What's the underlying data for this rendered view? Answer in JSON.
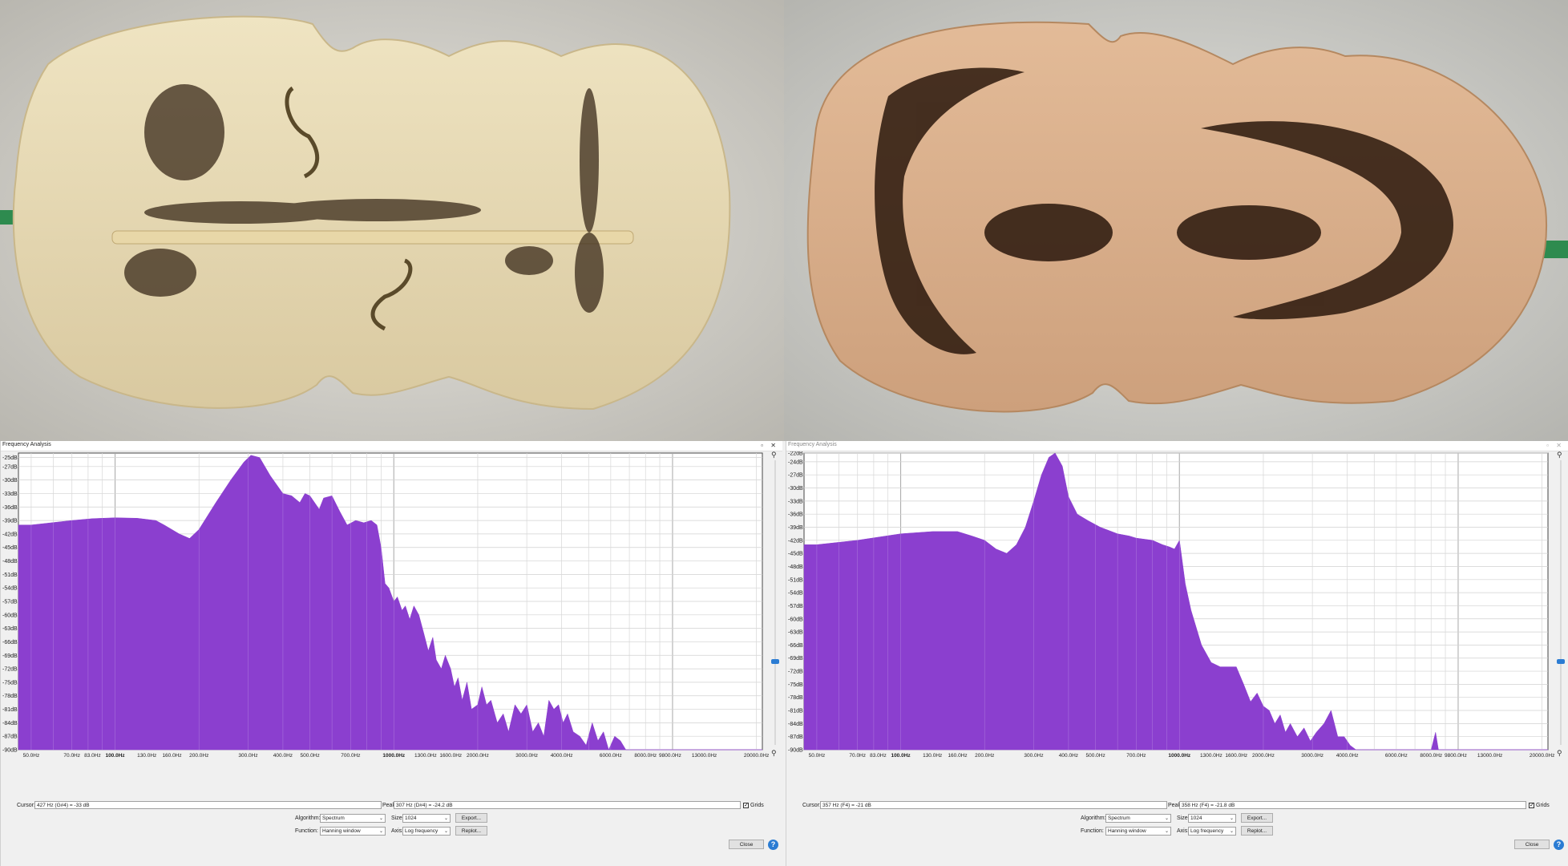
{
  "windows": [
    {
      "title": "Frequency Analysis",
      "active": true,
      "y_ticks": [
        "-25dB",
        "-27dB",
        "-30dB",
        "-33dB",
        "-36dB",
        "-39dB",
        "-42dB",
        "-45dB",
        "-48dB",
        "-51dB",
        "-54dB",
        "-57dB",
        "-60dB",
        "-63dB",
        "-66dB",
        "-69dB",
        "-72dB",
        "-75dB",
        "-78dB",
        "-81dB",
        "-84dB",
        "-87dB",
        "-90dB"
      ],
      "x_ticks": [
        "50.0Hz",
        "70.0Hz",
        "83.0Hz",
        "100.0Hz",
        "130.0Hz",
        "160.0Hz",
        "200.0Hz",
        "300.0Hz",
        "400.0Hz",
        "500.0Hz",
        "700.0Hz",
        "1000.0Hz",
        "1300.0Hz",
        "1600.0Hz",
        "2000.0Hz",
        "3000.0Hz",
        "4000.0Hz",
        "6000.0Hz",
        "8000.0Hz",
        "9800.0Hz",
        "13000.0Hz",
        "20000.0Hz"
      ],
      "cursor_label": "Cursor:",
      "cursor_value": "427 Hz (G#4) = -33 dB",
      "peak_label": "Peak:",
      "peak_value": "307 Hz (D#4) = -24.2 dB",
      "grids_label": "Grids",
      "algorithm_label": "Algorithm:",
      "algorithm_value": "Spectrum",
      "size_label": "Size:",
      "size_value": "1024",
      "function_label": "Function:",
      "function_value": "Hanning window",
      "axis_label": "Axis:",
      "axis_value": "Log frequency",
      "export_label": "Export...",
      "replot_label": "Replot...",
      "close_label": "Close",
      "help_label": "?"
    },
    {
      "title": "Frequency Analysis",
      "active": false,
      "y_ticks": [
        "-22dB",
        "-24dB",
        "-27dB",
        "-30dB",
        "-33dB",
        "-36dB",
        "-39dB",
        "-42dB",
        "-45dB",
        "-48dB",
        "-51dB",
        "-54dB",
        "-57dB",
        "-60dB",
        "-63dB",
        "-66dB",
        "-69dB",
        "-72dB",
        "-75dB",
        "-78dB",
        "-81dB",
        "-84dB",
        "-87dB",
        "-90dB"
      ],
      "x_ticks": [
        "50.0Hz",
        "70.0Hz",
        "83.0Hz",
        "100.0Hz",
        "130.0Hz",
        "160.0Hz",
        "200.0Hz",
        "300.0Hz",
        "400.0Hz",
        "500.0Hz",
        "700.0Hz",
        "1000.0Hz",
        "1300.0Hz",
        "1600.0Hz",
        "2000.0Hz",
        "3000.0Hz",
        "4000.0Hz",
        "6000.0Hz",
        "8000.0Hz",
        "9800.0Hz",
        "13000.0Hz",
        "20000.0Hz"
      ],
      "cursor_label": "Cursor:",
      "cursor_value": "357 Hz (F4) = -21 dB",
      "peak_label": "Peak:",
      "peak_value": "358 Hz (F4) = -21.8 dB",
      "grids_label": "Grids",
      "algorithm_label": "Algorithm:",
      "algorithm_value": "Spectrum",
      "size_label": "Size:",
      "size_value": "1024",
      "function_label": "Function:",
      "function_value": "Hanning window",
      "axis_label": "Axis:",
      "axis_value": "Log frequency",
      "export_label": "Export...",
      "replot_label": "Replot...",
      "close_label": "Close",
      "help_label": "?"
    }
  ],
  "chart_data": [
    {
      "type": "area",
      "xscale": "log",
      "xlim": [
        45,
        21000
      ],
      "ylim": [
        -90,
        -24
      ],
      "grid": true,
      "color": "#8b3fcf",
      "x": [
        45,
        50,
        70,
        83,
        100,
        120,
        140,
        150,
        170,
        185,
        200,
        230,
        260,
        290,
        307,
        330,
        360,
        400,
        430,
        460,
        480,
        500,
        540,
        560,
        600,
        640,
        680,
        730,
        780,
        830,
        870,
        900,
        930,
        960,
        1000,
        1030,
        1070,
        1100,
        1140,
        1180,
        1230,
        1280,
        1330,
        1380,
        1420,
        1480,
        1530,
        1600,
        1650,
        1700,
        1760,
        1830,
        1900,
        2000,
        2070,
        2150,
        2230,
        2350,
        2470,
        2580,
        2720,
        2860,
        3000,
        3150,
        3300,
        3450,
        3600,
        3750,
        3900,
        4050,
        4200,
        4400,
        4650,
        4900,
        5150,
        5400,
        5650,
        5900,
        6200,
        6500,
        6800,
        7100,
        7400,
        7800,
        8200,
        8600,
        9000,
        9400,
        9800,
        10300,
        10800,
        21000
      ],
      "y": [
        -40,
        -40,
        -39,
        -38.6,
        -38.4,
        -38.5,
        -39,
        -40,
        -42,
        -43,
        -41,
        -35,
        -30,
        -26,
        -24.5,
        -25,
        -29,
        -33,
        -33.5,
        -35,
        -33,
        -33.5,
        -36.5,
        -34,
        -33.5,
        -37,
        -40,
        -39,
        -39.5,
        -39,
        -40,
        -45,
        -53,
        -54,
        -57,
        -56,
        -59,
        -58,
        -61,
        -58,
        -60,
        -64,
        -68,
        -65,
        -70,
        -72,
        -69,
        -72,
        -76,
        -74,
        -79,
        -75,
        -81,
        -80,
        -76,
        -80,
        -79,
        -84,
        -82,
        -86,
        -80,
        -82,
        -80,
        -86,
        -84,
        -87,
        -79,
        -81,
        -80,
        -84,
        -82,
        -86,
        -87,
        -89,
        -84,
        -88,
        -86,
        -90,
        -87,
        -88,
        -90,
        -90,
        -90,
        -90,
        -90,
        -90,
        -90,
        -90,
        -90,
        -90,
        -90,
        -90
      ]
    },
    {
      "type": "area",
      "xscale": "log",
      "xlim": [
        45,
        21000
      ],
      "ylim": [
        -90,
        -22
      ],
      "grid": true,
      "color": "#8b3fcf",
      "x": [
        45,
        50,
        70,
        100,
        130,
        160,
        180,
        200,
        220,
        240,
        260,
        280,
        300,
        320,
        340,
        358,
        380,
        400,
        430,
        470,
        520,
        600,
        660,
        700,
        800,
        870,
        920,
        960,
        1000,
        1050,
        1100,
        1200,
        1300,
        1400,
        1500,
        1600,
        1700,
        1800,
        1900,
        2000,
        2100,
        2200,
        2300,
        2400,
        2500,
        2650,
        2800,
        2950,
        3100,
        3300,
        3500,
        3700,
        3900,
        4100,
        4300,
        4500,
        4800,
        5200,
        5600,
        6000,
        6500,
        7000,
        7500,
        8000,
        8300,
        8500,
        8700,
        21000
      ],
      "y": [
        -43,
        -43,
        -42,
        -40.5,
        -40,
        -40,
        -41,
        -42,
        -44,
        -45,
        -43,
        -39,
        -33,
        -27,
        -23,
        -22,
        -25,
        -32,
        -36,
        -37.5,
        -39,
        -40.5,
        -41,
        -41.5,
        -42,
        -43,
        -43.5,
        -44,
        -42,
        -52,
        -58,
        -66,
        -70,
        -71,
        -71,
        -71,
        -75,
        -79,
        -77,
        -80,
        -81,
        -84,
        -82,
        -86,
        -84,
        -87,
        -85,
        -88,
        -86,
        -84,
        -81,
        -87,
        -87,
        -89,
        -90,
        -90,
        -90,
        -90,
        -90,
        -90,
        -90,
        -90,
        -90,
        -90,
        -86,
        -90,
        -90,
        -90
      ]
    }
  ]
}
